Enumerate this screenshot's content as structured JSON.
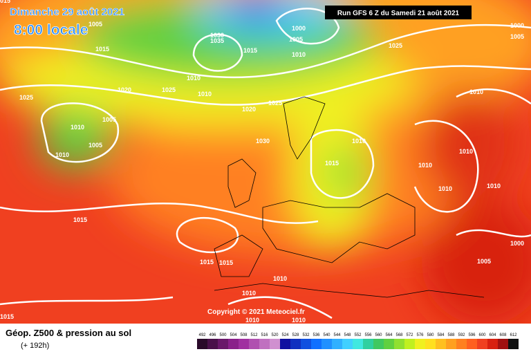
{
  "header": {
    "title": "Dimanche 29 août 2021",
    "time": "8:00 locale",
    "run": "Run GFS 6 Z du Samedi 21 août 2021",
    "copyright": "Copyright © 2021 Meteociel.fr"
  },
  "footer": {
    "title": "Géop. Z500 & pression au sol",
    "lead": "(+ 192h)"
  },
  "legend": {
    "labels": [
      492,
      496,
      500,
      504,
      508,
      512,
      516,
      520,
      524,
      528,
      532,
      536,
      540,
      544,
      548,
      552,
      556,
      560,
      564,
      568,
      572,
      576,
      580,
      584,
      588,
      592,
      596,
      600,
      604,
      608,
      612
    ],
    "colors": [
      "#2a0a2a",
      "#4a104a",
      "#6a186a",
      "#8a208a",
      "#a030a0",
      "#b050b0",
      "#c070c0",
      "#d090d0",
      "#1010a0",
      "#1030c0",
      "#1050e0",
      "#1070ff",
      "#2090ff",
      "#30b0ff",
      "#40d0ff",
      "#40e8e0",
      "#30d0a0",
      "#40c860",
      "#60d040",
      "#90e030",
      "#c0f020",
      "#f0f020",
      "#ffe020",
      "#ffc020",
      "#ffa020",
      "#ff8020",
      "#ff6020",
      "#f04020",
      "#d82010",
      "#a01010",
      "#101010"
    ]
  },
  "isobars": [
    "1015",
    "1005",
    "1000",
    "1005",
    "1030",
    "1035",
    "1015",
    "1015",
    "1010",
    "1025",
    "1000",
    "1005",
    "1020",
    "1025",
    "1010",
    "1010",
    "1025",
    "1010",
    "1020",
    "1025",
    "1005",
    "1010",
    "1005",
    "1010",
    "1030",
    "1010",
    "1015",
    "1010",
    "1010",
    "1010",
    "1010",
    "1015",
    "1000",
    "1005",
    "1015",
    "1015",
    "1010",
    "1010",
    "1015",
    "1010",
    "1010"
  ]
}
